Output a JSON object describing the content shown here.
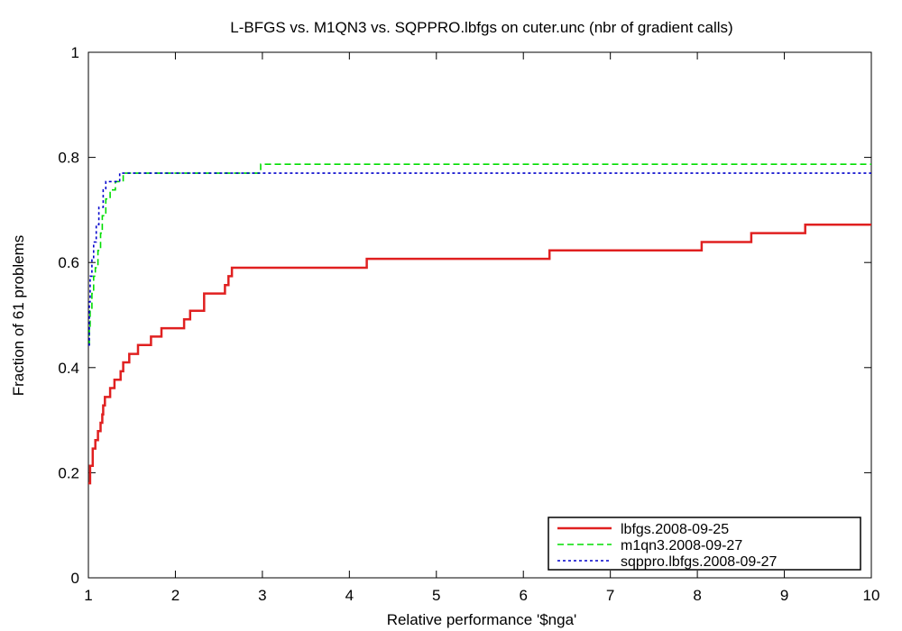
{
  "chart_data": {
    "type": "line",
    "title": "L-BFGS vs. M1QN3 vs. SQPPRO.lbfgs on cuter.unc (nbr of gradient calls)",
    "xlabel": "Relative performance '$nga'",
    "ylabel": "Fraction of 61 problems",
    "xlim": [
      1,
      10
    ],
    "ylim": [
      0,
      1
    ],
    "x_ticks": [
      "1",
      "2",
      "3",
      "4",
      "5",
      "6",
      "7",
      "8",
      "9",
      "10"
    ],
    "y_ticks": [
      "0",
      "0.2",
      "0.4",
      "0.6",
      "0.8",
      "1"
    ],
    "x_tick_values": [
      1,
      2,
      3,
      4,
      5,
      6,
      7,
      8,
      9,
      10
    ],
    "y_tick_values": [
      0,
      0.2,
      0.4,
      0.6,
      0.8,
      1
    ],
    "grid": false,
    "legend_position": "bottom-right",
    "series": [
      {
        "name": "lbfgs.2008-09-25",
        "color": "#e02020",
        "dash": "solid",
        "x": [
          1.0,
          1.02,
          1.05,
          1.08,
          1.11,
          1.14,
          1.16,
          1.17,
          1.19,
          1.25,
          1.3,
          1.37,
          1.4,
          1.47,
          1.57,
          1.72,
          1.84,
          2.1,
          2.17,
          2.33,
          2.57,
          2.61,
          2.65,
          4.2,
          6.3,
          8.05,
          8.62,
          9.24,
          10.0
        ],
        "y": [
          0.18,
          0.213,
          0.246,
          0.262,
          0.279,
          0.295,
          0.311,
          0.328,
          0.344,
          0.361,
          0.377,
          0.393,
          0.41,
          0.426,
          0.443,
          0.459,
          0.475,
          0.492,
          0.508,
          0.541,
          0.557,
          0.574,
          0.59,
          0.607,
          0.623,
          0.639,
          0.656,
          0.672,
          0.672
        ]
      },
      {
        "name": "m1qn3.2008-09-27",
        "color": "#00dd00",
        "dash": "dashed",
        "x": [
          1.0,
          1.01,
          1.02,
          1.04,
          1.06,
          1.08,
          1.11,
          1.14,
          1.16,
          1.2,
          1.25,
          1.31,
          1.35,
          1.4,
          2.98,
          10.0
        ],
        "y": [
          0.443,
          0.475,
          0.508,
          0.541,
          0.574,
          0.59,
          0.623,
          0.656,
          0.689,
          0.721,
          0.738,
          0.754,
          0.754,
          0.77,
          0.787,
          0.787
        ]
      },
      {
        "name": "sqppro.lbfgs.2008-09-27",
        "color": "#0000cc",
        "dash": "dotted",
        "x": [
          1.0,
          1.01,
          1.02,
          1.04,
          1.06,
          1.09,
          1.12,
          1.17,
          1.2,
          1.36,
          10.0
        ],
        "y": [
          0.443,
          0.525,
          0.574,
          0.607,
          0.639,
          0.672,
          0.705,
          0.738,
          0.754,
          0.77,
          0.77
        ]
      }
    ]
  }
}
